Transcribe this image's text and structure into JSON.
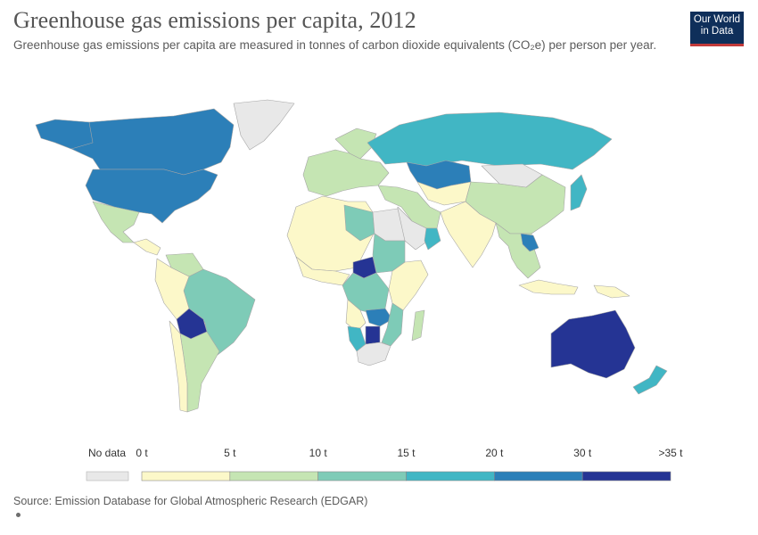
{
  "header": {
    "title": "Greenhouse gas emissions per capita, 2012",
    "subtitle": "Greenhouse gas emissions per capita are measured in tonnes of carbon dioxide equivalents (CO₂e) per person per year.",
    "logo_line1": "Our World",
    "logo_line2": "in Data"
  },
  "colors": {
    "no_data": "#e8e8e8",
    "c0_5": "#fcf8c9",
    "c5_10": "#c5e5b3",
    "c10_15": "#7ecbb7",
    "c15_20": "#41b6c4",
    "c20_30": "#2c7fb8",
    "c30_plus": "#253494",
    "border": "#b0b0b0",
    "text": "#5b5b5b",
    "logo_bg": "#0f2f5a",
    "logo_bar": "#c23a3a"
  },
  "legend": {
    "no_data_label": "No data",
    "bins": [
      {
        "from_label": "0 t",
        "color": "#fcf8c9"
      },
      {
        "from_label": "5 t",
        "color": "#c5e5b3"
      },
      {
        "from_label": "10 t",
        "color": "#7ecbb7"
      },
      {
        "from_label": "15 t",
        "color": "#41b6c4"
      },
      {
        "from_label": "20 t",
        "color": "#2c7fb8"
      },
      {
        "from_label": "30 t",
        "color": "#253494"
      }
    ],
    "end_label": ">35 t"
  },
  "regions": [
    {
      "name": "canada",
      "bin": "c20_30"
    },
    {
      "name": "united-states",
      "bin": "c20_30"
    },
    {
      "name": "alaska",
      "bin": "c20_30"
    },
    {
      "name": "greenland",
      "bin": "no_data"
    },
    {
      "name": "mexico",
      "bin": "c5_10"
    },
    {
      "name": "central-america",
      "bin": "c0_5"
    },
    {
      "name": "brazil",
      "bin": "c10_15"
    },
    {
      "name": "bolivia",
      "bin": "c30_plus"
    },
    {
      "name": "argentina",
      "bin": "c5_10"
    },
    {
      "name": "chile",
      "bin": "c0_5"
    },
    {
      "name": "northwest-south-america",
      "bin": "c0_5"
    },
    {
      "name": "venezuela",
      "bin": "c5_10"
    },
    {
      "name": "europe",
      "bin": "c5_10"
    },
    {
      "name": "scandinavia",
      "bin": "c5_10"
    },
    {
      "name": "russia",
      "bin": "c15_20"
    },
    {
      "name": "kazakhstan",
      "bin": "c20_30"
    },
    {
      "name": "central-asia",
      "bin": "c0_5"
    },
    {
      "name": "china",
      "bin": "c5_10"
    },
    {
      "name": "mongolia",
      "bin": "no_data"
    },
    {
      "name": "india",
      "bin": "c0_5"
    },
    {
      "name": "middle-east",
      "bin": "c5_10"
    },
    {
      "name": "saudi-arabia",
      "bin": "no_data"
    },
    {
      "name": "oman",
      "bin": "c15_20"
    },
    {
      "name": "north-africa",
      "bin": "c0_5"
    },
    {
      "name": "libya",
      "bin": "c10_15"
    },
    {
      "name": "egypt",
      "bin": "no_data"
    },
    {
      "name": "sudan",
      "bin": "c10_15"
    },
    {
      "name": "west-africa",
      "bin": "c0_5"
    },
    {
      "name": "central-african-republic",
      "bin": "c30_plus"
    },
    {
      "name": "congo",
      "bin": "c10_15"
    },
    {
      "name": "east-africa",
      "bin": "c0_5"
    },
    {
      "name": "zambia",
      "bin": "c20_30"
    },
    {
      "name": "angola",
      "bin": "c0_5"
    },
    {
      "name": "namibia",
      "bin": "c15_20"
    },
    {
      "name": "botswana",
      "bin": "c30_plus"
    },
    {
      "name": "mozambique",
      "bin": "c10_15"
    },
    {
      "name": "madagascar",
      "bin": "c5_10"
    },
    {
      "name": "south-africa",
      "bin": "no_data"
    },
    {
      "name": "southeast-asia",
      "bin": "c5_10"
    },
    {
      "name": "laos",
      "bin": "c20_30"
    },
    {
      "name": "indonesia",
      "bin": "c0_5"
    },
    {
      "name": "japan",
      "bin": "c15_20"
    },
    {
      "name": "papua-new-guinea",
      "bin": "c0_5"
    },
    {
      "name": "australia",
      "bin": "c30_plus"
    },
    {
      "name": "new-zealand",
      "bin": "c15_20"
    }
  ],
  "footer": {
    "source": "Source: Emission Database for Global Atmospheric Research (EDGAR)"
  }
}
